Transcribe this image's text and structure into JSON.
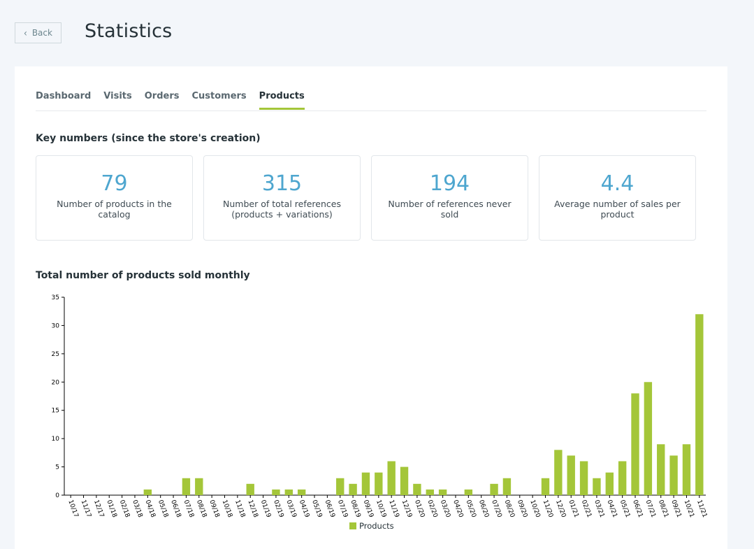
{
  "header": {
    "back_label": "Back",
    "title": "Statistics"
  },
  "tabs": [
    {
      "label": "Dashboard",
      "active": false
    },
    {
      "label": "Visits",
      "active": false
    },
    {
      "label": "Orders",
      "active": false
    },
    {
      "label": "Customers",
      "active": false
    },
    {
      "label": "Products",
      "active": true
    }
  ],
  "key_numbers": {
    "title": "Key numbers (since the store's creation)",
    "items": [
      {
        "value": "79",
        "label": "Number of products in the catalog"
      },
      {
        "value": "315",
        "label": "Number of total references (products + variations)"
      },
      {
        "value": "194",
        "label": "Number of references never sold"
      },
      {
        "value": "4.4",
        "label": "Average number of sales per product"
      }
    ]
  },
  "chart_section": {
    "title": "Total number of products sold monthly"
  },
  "colors": {
    "accent": "#a4c639",
    "kpi_number": "#4ea6cf"
  },
  "chart_data": {
    "type": "bar",
    "title": "Total number of products sold monthly",
    "xlabel": "",
    "ylabel": "",
    "ylim": [
      0,
      35
    ],
    "yticks": [
      0,
      5,
      10,
      15,
      20,
      25,
      30,
      35
    ],
    "grid": false,
    "legend_position": "bottom",
    "categories": [
      "10/17",
      "11/17",
      "12/17",
      "01/18",
      "02/18",
      "03/18",
      "04/18",
      "05/18",
      "06/18",
      "07/18",
      "08/18",
      "09/18",
      "10/18",
      "11/18",
      "12/18",
      "01/19",
      "02/19",
      "03/19",
      "04/19",
      "05/19",
      "06/19",
      "07/19",
      "08/19",
      "09/19",
      "10/19",
      "11/19",
      "12/19",
      "01/20",
      "02/20",
      "03/20",
      "04/20",
      "05/20",
      "06/20",
      "07/20",
      "08/20",
      "09/20",
      "10/20",
      "11/20",
      "12/20",
      "01/21",
      "02/21",
      "03/21",
      "04/21",
      "05/21",
      "06/21",
      "07/21",
      "08/21",
      "09/21",
      "10/21",
      "11/21"
    ],
    "series": [
      {
        "name": "Products",
        "color": "#a4c639",
        "values": [
          0,
          0,
          0,
          0,
          0,
          0,
          1,
          0,
          0,
          3,
          3,
          0,
          0,
          0,
          2,
          0,
          1,
          1,
          1,
          0,
          0,
          3,
          2,
          4,
          4,
          6,
          5,
          2,
          1,
          1,
          0,
          1,
          0,
          2,
          3,
          0,
          0,
          3,
          8,
          7,
          6,
          3,
          4,
          6,
          18,
          20,
          9,
          7,
          9,
          32
        ]
      }
    ]
  }
}
